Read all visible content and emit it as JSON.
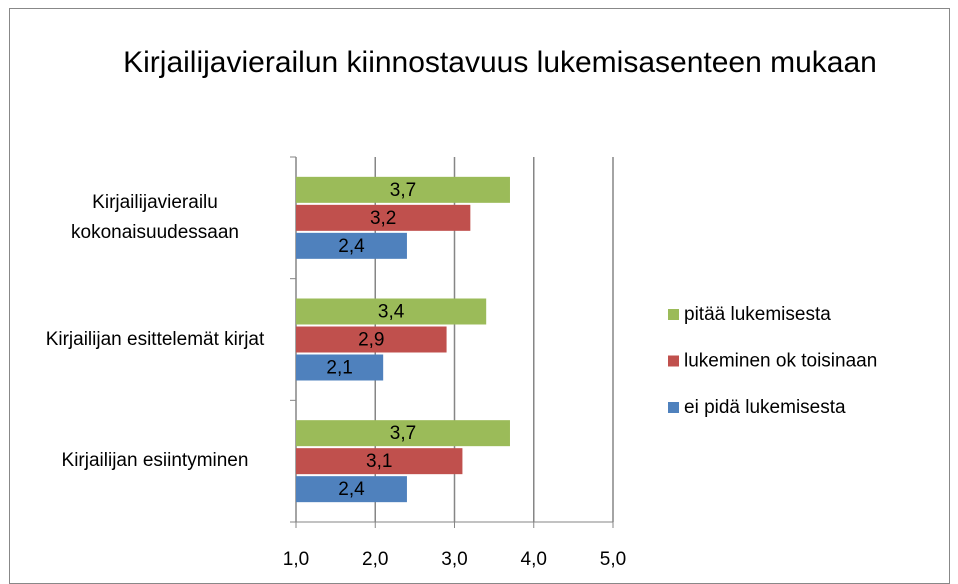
{
  "chart_data": {
    "type": "hbar",
    "title": "Kirjailijavierailun kiinnostavuus lukemisasenteen mukaan",
    "categories": [
      "Kirjailijavierailu kokonaisuudessaan",
      "Kirjailijan esittelemät kirjat",
      "Kirjailijan esiintyminen"
    ],
    "series": [
      {
        "name": "pitää lukemisesta",
        "color": "#9bbb59",
        "values": [
          3.7,
          3.4,
          3.7
        ],
        "value_labels": [
          "3,7",
          "3,4",
          "3,7"
        ]
      },
      {
        "name": "lukeminen ok toisinaan",
        "color": "#c0504d",
        "values": [
          3.2,
          2.9,
          3.1
        ],
        "value_labels": [
          "3,2",
          "2,9",
          "3,1"
        ]
      },
      {
        "name": "ei pidä lukemisesta",
        "color": "#4f81bd",
        "values": [
          2.4,
          2.1,
          2.4
        ],
        "value_labels": [
          "2,4",
          "2,1",
          "2,4"
        ]
      }
    ],
    "xlim": [
      1,
      5
    ],
    "xticks": [
      {
        "value": 1,
        "label": "1,0"
      },
      {
        "value": 2,
        "label": "2,0"
      },
      {
        "value": 3,
        "label": "3,0"
      },
      {
        "value": 4,
        "label": "4,0"
      },
      {
        "value": 5,
        "label": "5,0"
      }
    ],
    "grid": true,
    "legend": "right"
  }
}
